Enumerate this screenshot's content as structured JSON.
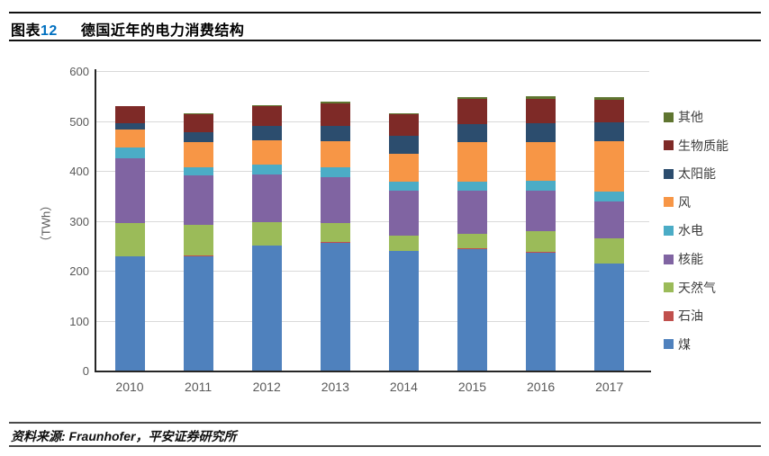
{
  "header": {
    "figure_label_prefix": "图表",
    "figure_number": "12",
    "figure_title": "德国近年的电力消费结构",
    "figure_number_color": "#0070C0"
  },
  "footer": {
    "source": "资料来源: Fraunhofer，平安证券研究所"
  },
  "chart_data": {
    "type": "bar",
    "stacked": true,
    "categories": [
      "2010",
      "2011",
      "2012",
      "2013",
      "2014",
      "2015",
      "2016",
      "2017"
    ],
    "ylabel": "（TWh）",
    "ylim": [
      0,
      600
    ],
    "yticks": [
      0,
      100,
      200,
      300,
      400,
      500,
      600
    ],
    "grid": true,
    "legend_position": "right",
    "legend_order_top_to_bottom": [
      "其他",
      "生物质能",
      "太阳能",
      "风",
      "水电",
      "核能",
      "天然气",
      "石油",
      "煤"
    ],
    "series": [
      {
        "name": "煤",
        "key": "coal",
        "color": "#4F81BD",
        "values": [
          228,
          229,
          250,
          256,
          239,
          244,
          236,
          214
        ]
      },
      {
        "name": "石油",
        "key": "oil",
        "color": "#C0504D",
        "values": [
          1,
          1,
          1,
          1,
          1,
          1,
          1,
          1
        ]
      },
      {
        "name": "天然气",
        "key": "gas",
        "color": "#9BBB59",
        "values": [
          66,
          61,
          46,
          38,
          31,
          28,
          43,
          50
        ]
      },
      {
        "name": "核能",
        "key": "nuclear",
        "color": "#8064A2",
        "values": [
          130,
          100,
          95,
          92,
          89,
          87,
          80,
          74
        ]
      },
      {
        "name": "水电",
        "key": "hydro",
        "color": "#4BACC6",
        "values": [
          22,
          17,
          20,
          21,
          18,
          19,
          20,
          19
        ]
      },
      {
        "name": "风",
        "key": "wind",
        "color": "#F79646",
        "values": [
          36,
          49,
          50,
          51,
          57,
          78,
          78,
          102
        ]
      },
      {
        "name": "太阳能",
        "key": "solar",
        "color": "#2C4D6E",
        "values": [
          12,
          21,
          28,
          31,
          35,
          37,
          37,
          38
        ]
      },
      {
        "name": "生物质能",
        "key": "biomass",
        "color": "#7E2A27",
        "values": [
          34,
          36,
          40,
          46,
          44,
          50,
          50,
          44
        ]
      },
      {
        "name": "其他",
        "key": "other",
        "color": "#5F7530",
        "values": [
          1,
          1,
          2,
          2,
          2,
          4,
          4,
          5
        ]
      }
    ],
    "totals": [
      530,
      515,
      532,
      538,
      516,
      548,
      549,
      547
    ]
  }
}
